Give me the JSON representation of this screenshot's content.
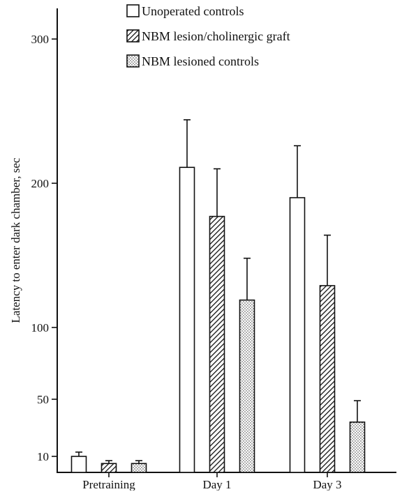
{
  "chart_data": {
    "type": "bar",
    "title": "",
    "xlabel": "",
    "ylabel": "Latency to enter dark chamber, sec",
    "categories": [
      "Pretraining",
      "Day 1",
      "Day 3"
    ],
    "series": [
      {
        "name": "Unoperated controls",
        "values": [
          10,
          211,
          190
        ],
        "errors": [
          3,
          33,
          36
        ],
        "pattern": "white",
        "color": "#ffffff"
      },
      {
        "name": "NBM lesion/cholinergic graft",
        "values": [
          5,
          177,
          129
        ],
        "errors": [
          2,
          33,
          35
        ],
        "pattern": "hatch",
        "color": "#222222"
      },
      {
        "name": "NBM lesioned controls",
        "values": [
          5,
          119,
          34
        ],
        "errors": [
          2,
          29,
          15
        ],
        "pattern": "dots",
        "color": "#bbbbbb"
      }
    ],
    "y_ticks": [
      10,
      50,
      100,
      200,
      300
    ],
    "y_tick_labels": [
      "10",
      "50",
      "100",
      "200",
      "300"
    ],
    "ylim": [
      10,
      300
    ],
    "y_scale": "broken",
    "grid": false,
    "legend": "top-center"
  }
}
